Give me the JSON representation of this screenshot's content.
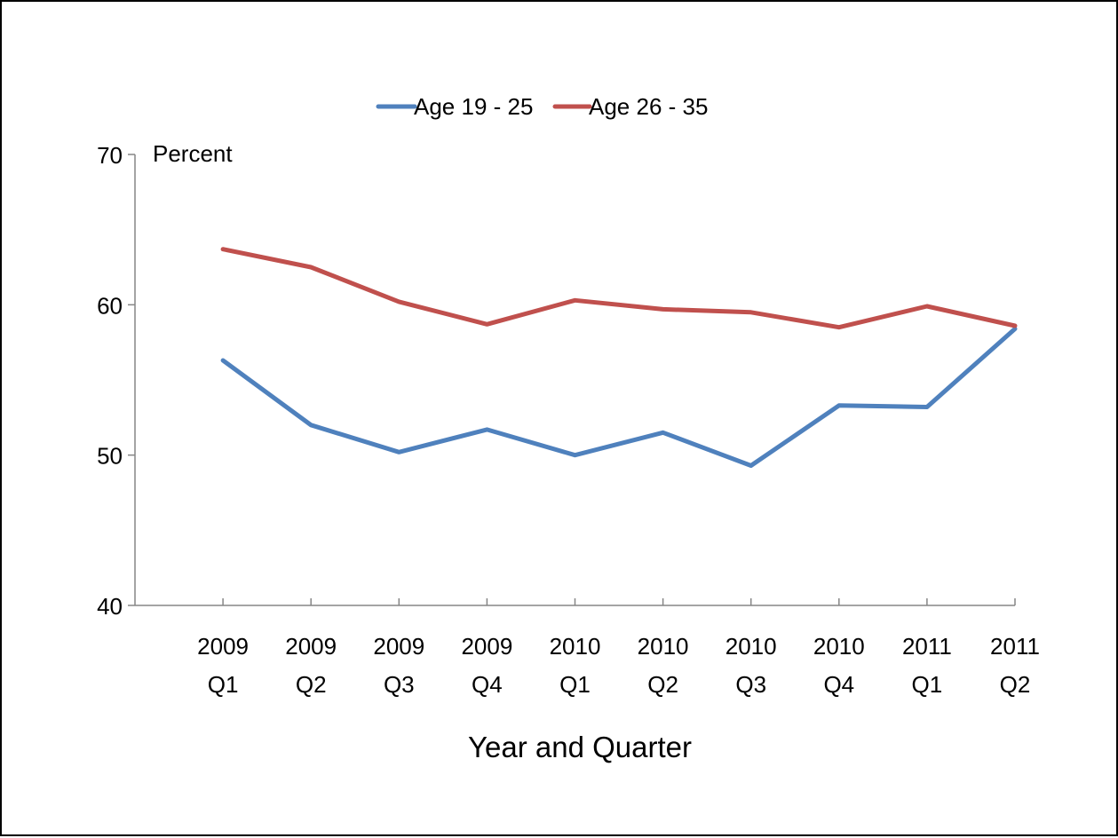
{
  "chart_data": {
    "type": "line",
    "categories": [
      [
        "2009",
        "Q1"
      ],
      [
        "2009",
        "Q2"
      ],
      [
        "2009",
        "Q3"
      ],
      [
        "2009",
        "Q4"
      ],
      [
        "2010",
        "Q1"
      ],
      [
        "2010",
        "Q2"
      ],
      [
        "2010",
        "Q3"
      ],
      [
        "2010",
        "Q4"
      ],
      [
        "2011",
        "Q1"
      ],
      [
        "2011",
        "Q2"
      ]
    ],
    "series": [
      {
        "name": "Age 19 - 25",
        "color": "#4F81BD",
        "values": [
          56.3,
          52.0,
          50.2,
          51.7,
          50.0,
          51.5,
          49.3,
          53.3,
          53.2,
          58.4
        ]
      },
      {
        "name": "Age 26 - 35",
        "color": "#C0504D",
        "values": [
          63.7,
          62.5,
          60.2,
          58.7,
          60.3,
          59.7,
          59.5,
          58.5,
          59.9,
          58.6
        ]
      }
    ],
    "xlabel": "Year and Quarter",
    "ylabel": "Percent",
    "ylim": [
      40,
      70
    ],
    "yticks": [
      40,
      50,
      60,
      70
    ],
    "grid": false,
    "legend_position": "top"
  }
}
